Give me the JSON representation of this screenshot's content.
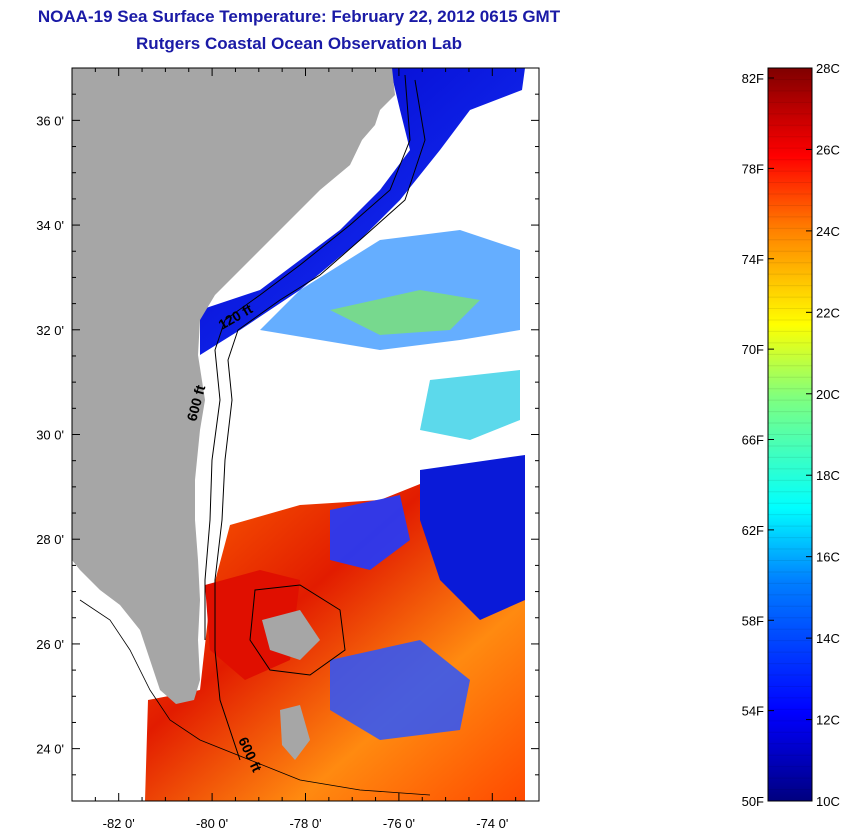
{
  "title": "NOAA-19 Sea Surface Temperature:  February 22, 2012 0615 GMT",
  "subtitle": "Rutgers Coastal Ocean Observation Lab",
  "map": {
    "lon_range": [
      -83,
      -73
    ],
    "lat_range": [
      23,
      37
    ],
    "lon_ticks": [
      "-82 0'",
      "-80 0'",
      "-78 0'",
      "-76 0'",
      "-74 0'"
    ],
    "lat_ticks": [
      "36 0'",
      "34 0'",
      "32 0'",
      "30 0'",
      "28 0'",
      "26 0'",
      "24 0'"
    ],
    "contour_labels": [
      "120 ft",
      "600 ft",
      "600 ft"
    ],
    "land_color": "#a6a6a6",
    "cloud_color": "#ffffff"
  },
  "colorbar": {
    "fahrenheit_labels": [
      "82F",
      "78F",
      "74F",
      "70F",
      "66F",
      "62F",
      "58F",
      "54F",
      "50F"
    ],
    "celsius_labels": [
      "28C",
      "26C",
      "24C",
      "22C",
      "20C",
      "18C",
      "16C",
      "14C",
      "12C",
      "10C"
    ],
    "colors": [
      "#00007f",
      "#0000ff",
      "#007fff",
      "#00ffff",
      "#7fff7f",
      "#ffff00",
      "#ff7f00",
      "#ff0000",
      "#7f0000"
    ]
  }
}
